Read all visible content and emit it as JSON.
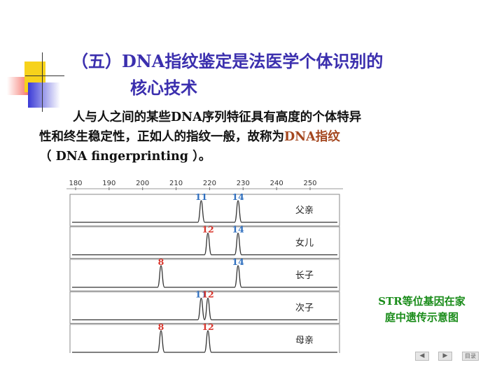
{
  "slide": {
    "title_line1": "（五）DNA指纹鉴定是法医学个体识别的",
    "title_line2": "核心技术",
    "para_line1": "人与人之间的某些DNA序列特征具有高度的个体特异",
    "para_line2_prefix": "性和终生稳定性，正如人的指纹一般，故称为",
    "para_line2_highlight": "DNA指纹",
    "para_line3": "（ DNA fingerprinting ）。",
    "caption_line1": "STR等位基因在家",
    "caption_line2": "庭中遗传示意图"
  },
  "nav": {
    "prev": "◀",
    "next": "▶",
    "menu": "目录"
  },
  "chart_data": {
    "type": "electropherogram",
    "scale_ticks": [
      180,
      190,
      200,
      210,
      220,
      230,
      240,
      250
    ],
    "xlim": [
      180,
      250
    ],
    "rows": [
      {
        "label": "父亲",
        "peaks": [
          {
            "x": 217.5,
            "allele": "11"
          },
          {
            "x": 228.5,
            "allele": "14"
          }
        ]
      },
      {
        "label": "女儿",
        "peaks": [
          {
            "x": 219.5,
            "allele": "12"
          },
          {
            "x": 228.5,
            "allele": "14"
          }
        ]
      },
      {
        "label": "长子",
        "peaks": [
          {
            "x": 205.5,
            "allele": "8"
          },
          {
            "x": 228.5,
            "allele": "14"
          }
        ]
      },
      {
        "label": "次子",
        "peaks": [
          {
            "x": 217.5,
            "allele": "11"
          },
          {
            "x": 219.5,
            "allele": "12"
          }
        ]
      },
      {
        "label": "母亲",
        "peaks": [
          {
            "x": 205.5,
            "allele": "8"
          },
          {
            "x": 219.5,
            "allele": "12"
          }
        ]
      }
    ],
    "colors": {
      "label": "#2f6fbf",
      "label_alt": "#d9342b",
      "trace": "#333333",
      "grid": "#cccccc"
    }
  }
}
